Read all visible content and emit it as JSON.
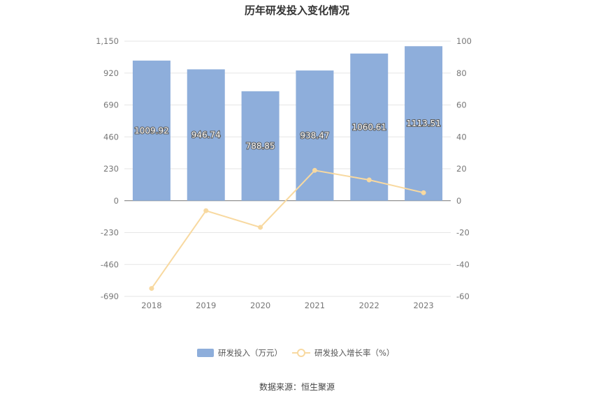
{
  "chart_data": {
    "type": "bar",
    "title": "历年研发投入变化情况",
    "categories": [
      "2018",
      "2019",
      "2020",
      "2021",
      "2022",
      "2023"
    ],
    "series": [
      {
        "name": "研发投入（万元）",
        "type": "bar",
        "axis": "left",
        "color": "#8eaedb",
        "values": [
          1009.92,
          946.74,
          788.85,
          938.47,
          1060.61,
          1113.51
        ],
        "labels": [
          "1009.92",
          "946.74",
          "788.85",
          "938.47",
          "1060.61",
          "1113.51"
        ]
      },
      {
        "name": "研发投入增长率（%）",
        "type": "line",
        "axis": "right",
        "color": "#f8d9a0",
        "values": [
          -55.0,
          -6.3,
          -16.7,
          19.0,
          13.0,
          5.0
        ]
      }
    ],
    "y_left": {
      "min": -690,
      "max": 1150,
      "ticks": [
        "1,150",
        "920",
        "690",
        "460",
        "230",
        "0",
        "-230",
        "-460",
        "-690"
      ]
    },
    "y_right": {
      "min": -60,
      "max": 100,
      "ticks": [
        "100",
        "80",
        "60",
        "40",
        "20",
        "0",
        "-20",
        "-40",
        "-60"
      ]
    },
    "grid": true,
    "legend": "bottom"
  },
  "footer": {
    "source": "数据来源：恒生聚源"
  }
}
